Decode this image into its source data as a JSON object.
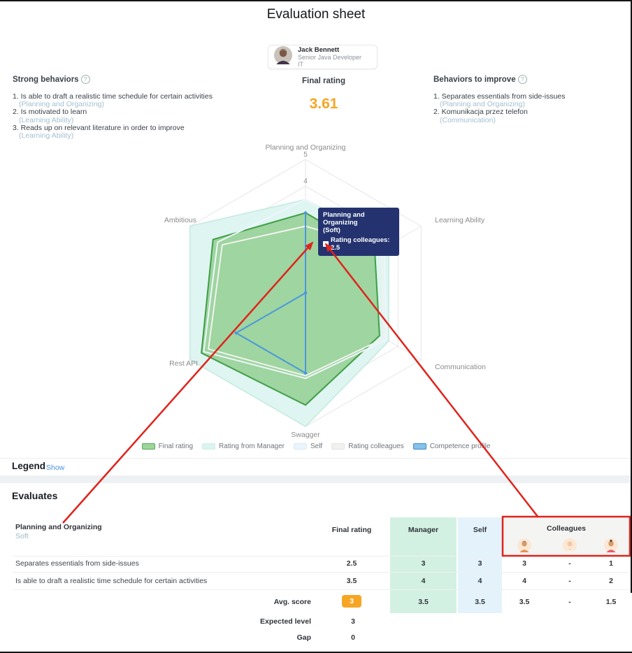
{
  "page": {
    "title": "Evaluation sheet"
  },
  "profile": {
    "name": "Jack Bennett",
    "role": "Senior Java Developer",
    "department": "IT"
  },
  "icons": {
    "help": "?"
  },
  "strong_behaviors": {
    "title": "Strong behaviors",
    "items": [
      {
        "text": "Is able to draft a realistic time schedule for certain activities",
        "category": "(Planning and Organizing)"
      },
      {
        "text": "Is motivated to learn",
        "category": "(Learning Ability)"
      },
      {
        "text": "Reads up on relevant literature in order to improve",
        "category": "(Learning Ability)"
      }
    ]
  },
  "final_rating": {
    "label": "Final rating",
    "value": "3.61"
  },
  "behaviors_to_improve": {
    "title": "Behaviors to improve",
    "items": [
      {
        "text": "Separates essentials from side-issues",
        "category": "(Planning and Organizing)"
      },
      {
        "text": "Komunikacja przez telefon",
        "category": "(Communication)"
      }
    ]
  },
  "chart_data": {
    "type": "radar",
    "categories": [
      "Planning and Organizing",
      "Learning Ability",
      "Communication",
      "Swagger",
      "Rest API",
      "Ambitious"
    ],
    "scale": {
      "min": 0,
      "max": 5,
      "ticks": [
        {
          "label": "5",
          "value": 5
        },
        {
          "label": "4",
          "value": 4
        }
      ]
    },
    "series": [
      {
        "name": "Final rating",
        "values": [
          3,
          3,
          3.2,
          4.2,
          4.5,
          4
        ],
        "fill": "#8fcd8c",
        "fill_opacity": 0.8,
        "stroke": "#3f9e47",
        "stroke_width": 2,
        "swatch_fill": "#9ed69a",
        "swatch_border": "#57a85c"
      },
      {
        "name": "Rating from Manager",
        "values": [
          3.5,
          3.6,
          3.6,
          5,
          5,
          5
        ],
        "fill": "#d9f3ee",
        "fill_opacity": 0.85,
        "stroke": "#c2eadf",
        "stroke_width": 1.5,
        "swatch_fill": "#dcf4ef",
        "swatch_border": "#cdeee7"
      },
      {
        "name": "Self",
        "values": [
          3.5,
          3.4,
          3.5,
          3.2,
          4.4,
          3.8
        ],
        "fill": "none",
        "fill_opacity": 0,
        "stroke": "#eef6fd",
        "stroke_width": 2,
        "swatch_fill": "#eaf4fc",
        "swatch_border": "#dceaf5"
      },
      {
        "name": "Rating colleagues",
        "values": [
          2.5,
          3.3,
          3.4,
          3.1,
          4.2,
          3.6
        ],
        "fill": "none",
        "fill_opacity": 0,
        "stroke": "#f2f2ee",
        "stroke_width": 2,
        "swatch_fill": "#f1f1ef",
        "swatch_border": "#e3e3df"
      },
      {
        "name": "Competence profile",
        "values": [
          3,
          0,
          0,
          3,
          3,
          0
        ],
        "fill": "none",
        "fill_opacity": 0,
        "stroke": "#4a97dd",
        "stroke_width": 2,
        "swatch_fill": "#85c2ec",
        "swatch_border": "#3f88c5",
        "dots": true
      }
    ],
    "tooltip": {
      "title": "Planning and Organizing",
      "subtitle": "(Soft)",
      "entry": "Rating colleagues: 2.5"
    },
    "legend_position": "bottom"
  },
  "legend_section": {
    "title": "Legend",
    "action": "Show"
  },
  "evaluates": {
    "title": "Evaluates",
    "competency": {
      "name": "Planning and Organizing",
      "type": "Soft"
    },
    "columns": {
      "final_rating": "Final rating",
      "manager": "Manager",
      "self": "Self",
      "colleagues": "Colleagues"
    },
    "rows": [
      {
        "label": "Separates essentials from side-issues",
        "final": "2.5",
        "manager": "3",
        "self": "3",
        "colleagues": [
          "3",
          "-",
          "1"
        ]
      },
      {
        "label": "Is able to draft a realistic time schedule for certain activities",
        "final": "3.5",
        "manager": "4",
        "self": "4",
        "colleagues": [
          "4",
          "-",
          "2"
        ]
      }
    ],
    "avg": {
      "label": "Avg. score",
      "badge": "3",
      "manager": "3.5",
      "self": "3.5",
      "colleagues": [
        "3.5",
        "-",
        "1.5"
      ]
    },
    "expected": {
      "label": "Expected level",
      "value": "3"
    },
    "gap": {
      "label": "Gap",
      "value": "0"
    }
  },
  "colors": {
    "accent_orange": "#f7a623",
    "annotation_red": "#e0231c",
    "tooltip_bg": "#243370",
    "link_blue": "#4a90e2",
    "manager_col_bg": "#d3f1e3",
    "self_col_bg": "#e4f3fb",
    "colleagues_col_bg": "#f4f4f2"
  }
}
